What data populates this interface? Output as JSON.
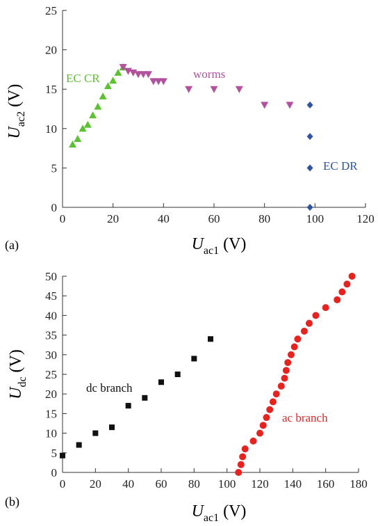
{
  "chart_data": [
    {
      "type": "scatter",
      "panel_label": "(a)",
      "xlabel": {
        "main": "U",
        "sub": "ac1",
        "unit": " (V)"
      },
      "ylabel": {
        "main": "U",
        "sub": "ac2",
        "unit": " (V)"
      },
      "xlim": [
        0,
        120
      ],
      "ylim": [
        0,
        25
      ],
      "xticks": [
        0,
        20,
        40,
        60,
        80,
        100,
        120
      ],
      "yticks": [
        0,
        5,
        10,
        15,
        20,
        25
      ],
      "grid": false,
      "series": [
        {
          "name": "EC CR",
          "marker": "triangle-up",
          "color": "#5cc232",
          "points": [
            [
              4,
              8
            ],
            [
              6,
              8.7
            ],
            [
              8,
              10
            ],
            [
              10,
              10.5
            ],
            [
              12,
              11.7
            ],
            [
              14,
              12.8
            ],
            [
              16,
              14.1
            ],
            [
              18,
              15.4
            ],
            [
              20,
              16.1
            ],
            [
              22,
              17.1
            ],
            [
              24,
              17.8
            ]
          ]
        },
        {
          "name": "worms",
          "marker": "triangle-down",
          "color": "#b2529c",
          "points": [
            [
              24,
              17.8
            ],
            [
              26,
              17.3
            ],
            [
              28,
              17.1
            ],
            [
              30,
              16.9
            ],
            [
              32,
              16.9
            ],
            [
              34,
              16.9
            ],
            [
              36,
              16
            ],
            [
              38,
              16
            ],
            [
              40,
              16
            ],
            [
              50,
              15
            ],
            [
              60,
              15
            ],
            [
              70,
              15
            ],
            [
              80,
              13
            ],
            [
              90,
              13
            ]
          ]
        },
        {
          "name": "EC DR",
          "marker": "diamond",
          "color": "#2e54a8",
          "points": [
            [
              98,
              13
            ],
            [
              98,
              9
            ],
            [
              98,
              5
            ],
            [
              98,
              0
            ]
          ]
        }
      ]
    },
    {
      "type": "scatter",
      "panel_label": "(b)",
      "xlabel": {
        "main": "U",
        "sub": "ac1",
        "unit": " (V)"
      },
      "ylabel": {
        "main": "U",
        "sub": "dc",
        "unit": " (V)"
      },
      "xlim": [
        0,
        180
      ],
      "ylim": [
        0,
        50
      ],
      "xticks": [
        0,
        20,
        40,
        60,
        80,
        100,
        120,
        140,
        160,
        180
      ],
      "yticks": [
        0,
        5,
        10,
        15,
        20,
        25,
        30,
        35,
        40,
        45,
        50
      ],
      "grid": false,
      "series": [
        {
          "name": "dc branch",
          "marker": "square",
          "color": "#111111",
          "points": [
            [
              0,
              4.3
            ],
            [
              10,
              7
            ],
            [
              20,
              10
            ],
            [
              30,
              11.5
            ],
            [
              40,
              17
            ],
            [
              50,
              19
            ],
            [
              60,
              23
            ],
            [
              70,
              25
            ],
            [
              80,
              29
            ],
            [
              90,
              34
            ]
          ]
        },
        {
          "name": "ac branch",
          "marker": "circle",
          "color": "#e8231f",
          "points": [
            [
              107,
              0
            ],
            [
              108.5,
              2
            ],
            [
              109.5,
              4
            ],
            [
              111,
              6
            ],
            [
              116,
              8
            ],
            [
              120,
              10
            ],
            [
              122,
              12
            ],
            [
              124,
              14
            ],
            [
              126,
              16
            ],
            [
              128,
              18
            ],
            [
              130,
              20
            ],
            [
              133,
              22
            ],
            [
              135,
              24
            ],
            [
              136,
              26
            ],
            [
              137,
              28
            ],
            [
              139,
              30
            ],
            [
              141,
              32
            ],
            [
              143,
              34
            ],
            [
              147,
              36
            ],
            [
              150,
              38
            ],
            [
              154,
              40
            ],
            [
              160,
              42
            ],
            [
              167,
              44
            ],
            [
              170,
              46
            ],
            [
              173,
              48
            ],
            [
              176,
              50
            ]
          ]
        }
      ]
    }
  ]
}
